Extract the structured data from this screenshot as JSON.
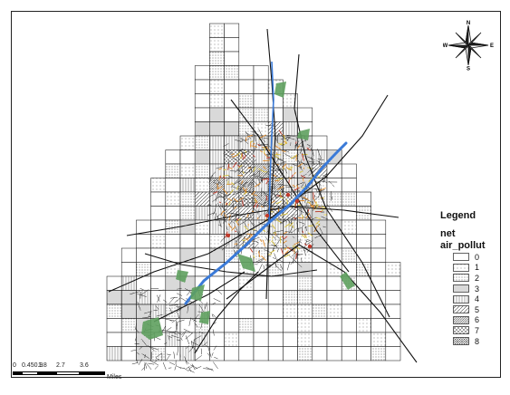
{
  "legend": {
    "title": "Legend",
    "layer": "net",
    "field": "air_pollut",
    "classes": [
      {
        "label": "0",
        "pattern": "blank"
      },
      {
        "label": "1",
        "pattern": "dots-sparse"
      },
      {
        "label": "2",
        "pattern": "dots"
      },
      {
        "label": "3",
        "pattern": "dots-dense"
      },
      {
        "label": "4",
        "pattern": "vlines"
      },
      {
        "label": "5",
        "pattern": "diag"
      },
      {
        "label": "6",
        "pattern": "diag-dense"
      },
      {
        "label": "7",
        "pattern": "crosshatch"
      },
      {
        "label": "8",
        "pattern": "crosshatch-dense"
      }
    ]
  },
  "north_arrow": {
    "n": "N",
    "s": "S",
    "e": "E",
    "w": "W"
  },
  "scale_bar": {
    "ticks": [
      "0",
      "0.450.9",
      "1.8",
      "2.7",
      "3.6"
    ],
    "units": "Miles"
  },
  "colors": {
    "grid_line": "#1a1a1a",
    "road": "#111111",
    "river": "#3a7ad8",
    "park": "#5ea05e",
    "highway_red": "#c23a2a",
    "highway_orange": "#e08a2a",
    "highway_yellow": "#d8c23a"
  }
}
